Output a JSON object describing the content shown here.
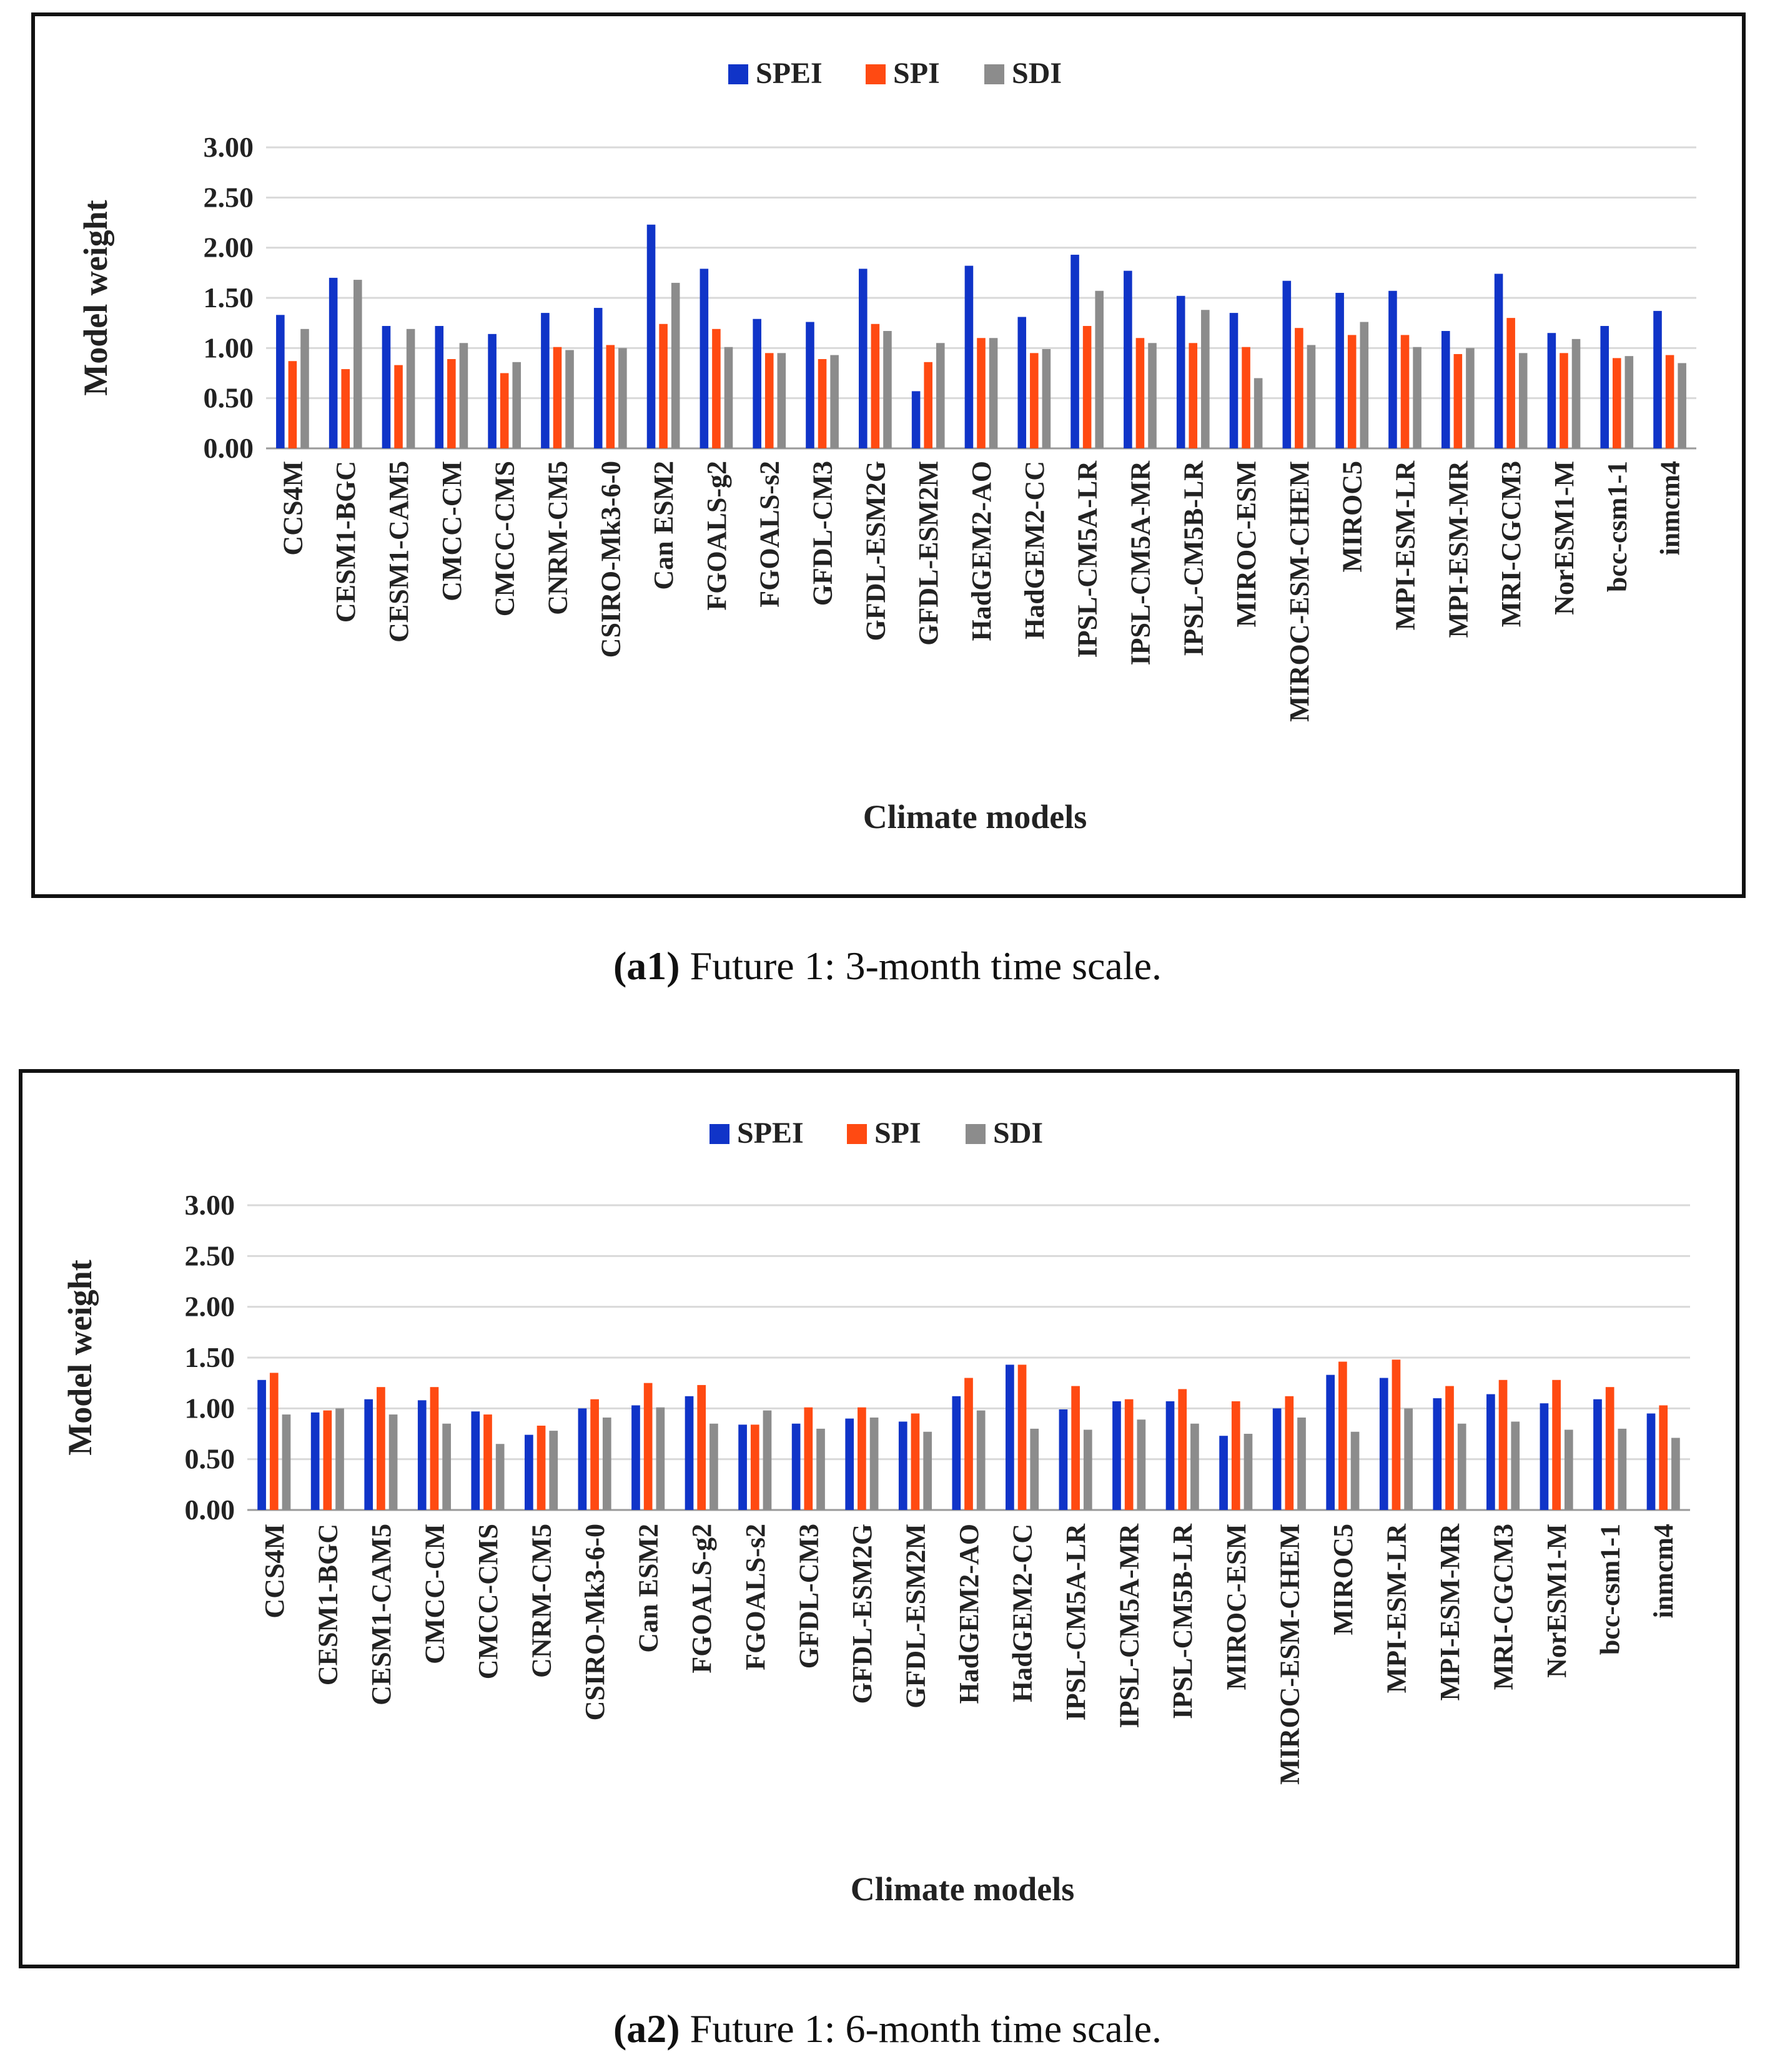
{
  "chart_data": [
    {
      "type": "bar",
      "caption_label": "(a1)",
      "caption_text": "Future 1: 3-month time scale.",
      "xlabel": "Climate models",
      "ylabel": "Model weight",
      "ylim": [
        0,
        3
      ],
      "yticks": [
        "0.00",
        "0.50",
        "1.00",
        "1.50",
        "2.00",
        "2.50",
        "3.00"
      ],
      "grid": true,
      "legend_position": "top",
      "categories": [
        "CCS4M",
        "CESM1-BGC",
        "CESM1-CAM5",
        "CMCC-CM",
        "CMCC-CMS",
        "CNRM-CM5",
        "CSIRO-Mk3-6-0",
        "Can ESM2",
        "FGOALS-g2",
        "FGOALS-s2",
        "GFDL-CM3",
        "GFDL-ESM2G",
        "GFDL-ESM2M",
        "HadGEM2-AO",
        "HadGEM2-CC",
        "IPSL-CM5A-LR",
        "IPSL-CM5A-MR",
        "IPSL-CM5B-LR",
        "MIROC-ESM",
        "MIROC-ESM-CHEM",
        "MIROC5",
        "MPI-ESM-LR",
        "MPI-ESM-MR",
        "MRI-CGCM3",
        "NorESM1-M",
        "bcc-csm1-1",
        "inmcm4"
      ],
      "series": [
        {
          "name": "SPEI",
          "color": "#1034c8",
          "values": [
            1.33,
            1.7,
            1.22,
            1.22,
            1.14,
            1.35,
            1.4,
            2.23,
            1.79,
            1.29,
            1.26,
            1.79,
            0.57,
            1.82,
            1.31,
            1.93,
            1.77,
            1.52,
            1.35,
            1.67,
            1.55,
            1.57,
            1.17,
            1.74,
            1.15,
            1.22,
            1.37
          ]
        },
        {
          "name": "SPI",
          "color": "#ff4a12",
          "values": [
            0.87,
            0.79,
            0.83,
            0.89,
            0.75,
            1.01,
            1.03,
            1.24,
            1.19,
            0.95,
            0.89,
            1.24,
            0.86,
            1.1,
            0.95,
            1.22,
            1.1,
            1.05,
            1.01,
            1.2,
            1.13,
            1.13,
            0.94,
            1.3,
            0.95,
            0.9,
            0.93
          ]
        },
        {
          "name": "SDI",
          "color": "#8c8c8c",
          "values": [
            1.19,
            1.68,
            1.19,
            1.05,
            0.86,
            0.98,
            1.0,
            1.65,
            1.01,
            0.95,
            0.93,
            1.17,
            1.05,
            1.1,
            0.99,
            1.57,
            1.05,
            1.38,
            0.7,
            1.03,
            1.26,
            1.01,
            1.0,
            0.95,
            1.09,
            0.92,
            0.85
          ]
        }
      ]
    },
    {
      "type": "bar",
      "caption_label": "(a2)",
      "caption_text": "Future 1: 6-month time scale.",
      "xlabel": "Climate models",
      "ylabel": "Model weight",
      "ylim": [
        0,
        3
      ],
      "yticks": [
        "0.00",
        "0.50",
        "1.00",
        "1.50",
        "2.00",
        "2.50",
        "3.00"
      ],
      "grid": true,
      "legend_position": "top",
      "categories": [
        "CCS4M",
        "CESM1-BGC",
        "CESM1-CAM5",
        "CMCC-CM",
        "CMCC-CMS",
        "CNRM-CM5",
        "CSIRO-Mk3-6-0",
        "Can ESM2",
        "FGOALS-g2",
        "FGOALS-s2",
        "GFDL-CM3",
        "GFDL-ESM2G",
        "GFDL-ESM2M",
        "HadGEM2-AO",
        "HadGEM2-CC",
        "IPSL-CM5A-LR",
        "IPSL-CM5A-MR",
        "IPSL-CM5B-LR",
        "MIROC-ESM",
        "MIROC-ESM-CHEM",
        "MIROC5",
        "MPI-ESM-LR",
        "MPI-ESM-MR",
        "MRI-CGCM3",
        "NorESM1-M",
        "bcc-csm1-1",
        "inmcm4"
      ],
      "series": [
        {
          "name": "SPEI",
          "color": "#1034c8",
          "values": [
            1.28,
            0.96,
            1.09,
            1.08,
            0.97,
            0.74,
            1.0,
            1.03,
            1.12,
            0.84,
            0.85,
            0.9,
            0.87,
            1.12,
            1.43,
            0.99,
            1.07,
            1.07,
            0.73,
            1.0,
            1.33,
            1.3,
            1.1,
            1.14,
            1.05,
            1.09,
            0.95
          ]
        },
        {
          "name": "SPI",
          "color": "#ff4a12",
          "values": [
            1.35,
            0.98,
            1.21,
            1.21,
            0.94,
            0.83,
            1.09,
            1.25,
            1.23,
            0.84,
            1.01,
            1.01,
            0.95,
            1.3,
            1.43,
            1.22,
            1.09,
            1.19,
            1.07,
            1.12,
            1.46,
            1.48,
            1.22,
            1.28,
            1.28,
            1.21,
            1.03
          ]
        },
        {
          "name": "SDI",
          "color": "#8c8c8c",
          "values": [
            0.94,
            1.0,
            0.94,
            0.85,
            0.65,
            0.78,
            0.91,
            1.01,
            0.85,
            0.98,
            0.8,
            0.91,
            0.77,
            0.98,
            0.8,
            0.79,
            0.89,
            0.85,
            0.75,
            0.91,
            0.77,
            1.0,
            0.85,
            0.87,
            0.79,
            0.8,
            0.71
          ]
        }
      ]
    }
  ]
}
